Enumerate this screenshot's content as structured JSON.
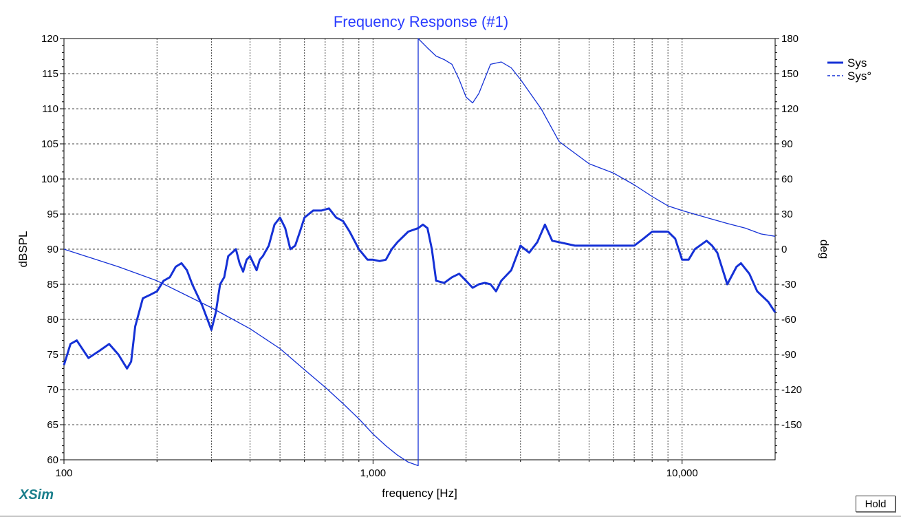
{
  "app": {
    "logo_text": "XSim",
    "hold_label": "Hold"
  },
  "colors": {
    "curve": "#1531d6",
    "title": "#2a3cff",
    "grid": "#444444",
    "frame": "#000000"
  },
  "chart_data": {
    "type": "line",
    "title": "Frequency Response (#1)",
    "xlabel": "frequency [Hz]",
    "ylabel": "dBSPL",
    "y2label": "deg",
    "xscale": "log",
    "xlim": [
      100,
      20000
    ],
    "ylim": [
      60,
      120
    ],
    "y2lim": [
      -180,
      180
    ],
    "grid": true,
    "legend_position": "top-right",
    "x_ticks": [
      {
        "value": 100,
        "label": "100"
      },
      {
        "value": 1000,
        "label": "1,000"
      },
      {
        "value": 10000,
        "label": "10,000"
      }
    ],
    "y_ticks": [
      {
        "value": 60,
        "label": "60"
      },
      {
        "value": 65,
        "label": "65"
      },
      {
        "value": 70,
        "label": "70"
      },
      {
        "value": 75,
        "label": "75"
      },
      {
        "value": 80,
        "label": "80"
      },
      {
        "value": 85,
        "label": "85"
      },
      {
        "value": 90,
        "label": "90"
      },
      {
        "value": 95,
        "label": "95"
      },
      {
        "value": 100,
        "label": "100"
      },
      {
        "value": 105,
        "label": "105"
      },
      {
        "value": 110,
        "label": "110"
      },
      {
        "value": 115,
        "label": "115"
      },
      {
        "value": 120,
        "label": "120"
      }
    ],
    "y2_ticks": [
      {
        "value": 180,
        "label": "180"
      },
      {
        "value": 150,
        "label": "150"
      },
      {
        "value": 120,
        "label": "120"
      },
      {
        "value": 90,
        "label": "90"
      },
      {
        "value": 60,
        "label": "60"
      },
      {
        "value": 30,
        "label": "30"
      },
      {
        "value": 0,
        "label": "0"
      },
      {
        "value": -30,
        "label": "-30"
      },
      {
        "value": -60,
        "label": "-60"
      },
      {
        "value": -90,
        "label": "-90"
      },
      {
        "value": -120,
        "label": "-120"
      },
      {
        "value": -150,
        "label": "-150"
      }
    ],
    "series": [
      {
        "name": "Sys",
        "axis": "left",
        "style": "solid",
        "x": [
          100,
          105,
          110,
          120,
          130,
          140,
          150,
          160,
          165,
          170,
          180,
          190,
          200,
          210,
          220,
          230,
          240,
          250,
          260,
          280,
          300,
          310,
          320,
          330,
          340,
          360,
          370,
          380,
          390,
          400,
          420,
          430,
          440,
          460,
          480,
          500,
          520,
          540,
          560,
          580,
          600,
          640,
          680,
          720,
          760,
          800,
          840,
          900,
          960,
          1000,
          1050,
          1100,
          1150,
          1200,
          1300,
          1400,
          1450,
          1500,
          1550,
          1600,
          1700,
          1800,
          1900,
          2000,
          2100,
          2200,
          2300,
          2400,
          2500,
          2600,
          2800,
          3000,
          3200,
          3400,
          3600,
          3800,
          4000,
          4500,
          5000,
          5500,
          6000,
          6500,
          7000,
          7500,
          8000,
          8500,
          9000,
          9500,
          10000,
          10500,
          11000,
          12000,
          12500,
          13000,
          14000,
          15000,
          15500,
          16500,
          17500,
          19000,
          20000
        ],
        "y": [
          73.5,
          76.5,
          77,
          74.5,
          75.5,
          76.5,
          75,
          73,
          74,
          79,
          83,
          83.5,
          84,
          85.5,
          86,
          87.5,
          88,
          87,
          85,
          82,
          78.5,
          81,
          85,
          86,
          89,
          90,
          88,
          86.8,
          88.5,
          89,
          87,
          88.5,
          89,
          90.5,
          93.5,
          94.5,
          93,
          90,
          90.5,
          92.5,
          94.5,
          95.5,
          95.5,
          95.8,
          94.5,
          94,
          92.5,
          90,
          88.5,
          88.5,
          88.3,
          88.5,
          90,
          91,
          92.5,
          93,
          93.5,
          93,
          90,
          85.5,
          85.2,
          86,
          86.5,
          85.5,
          84.5,
          85,
          85.2,
          85,
          84,
          85.5,
          87,
          90.5,
          89.5,
          91,
          93.5,
          91.2,
          91,
          90.5,
          90.5,
          90.5,
          90.5,
          90.5,
          90.5,
          91.5,
          92.5,
          92.5,
          92.5,
          91.5,
          88.5,
          88.5,
          90,
          91.2,
          90.5,
          89.5,
          85,
          87.5,
          88,
          86.5,
          84,
          82.5,
          81
        ]
      },
      {
        "name": "Sys°",
        "axis": "right",
        "style": "dashed",
        "x": [
          100,
          150,
          200,
          300,
          400,
          500,
          600,
          700,
          800,
          900,
          1000,
          1100,
          1200,
          1300,
          1400,
          1400,
          1500,
          1600,
          1700,
          1800,
          1900,
          2000,
          2100,
          2200,
          2400,
          2600,
          2800,
          3000,
          3500,
          4000,
          5000,
          6000,
          7000,
          8000,
          9000,
          10000,
          12000,
          14000,
          16000,
          18000,
          20000
        ],
        "y": [
          0,
          -15,
          -27,
          -50,
          -68,
          -85,
          -103,
          -118,
          -132,
          -145,
          -158,
          -168,
          -176,
          -182,
          -185,
          180,
          172,
          165,
          162,
          158,
          145,
          130,
          125,
          133,
          158,
          160,
          155,
          145,
          120,
          92,
          73,
          65,
          55,
          45,
          37,
          33,
          27,
          22,
          18,
          13,
          11
        ]
      }
    ]
  }
}
